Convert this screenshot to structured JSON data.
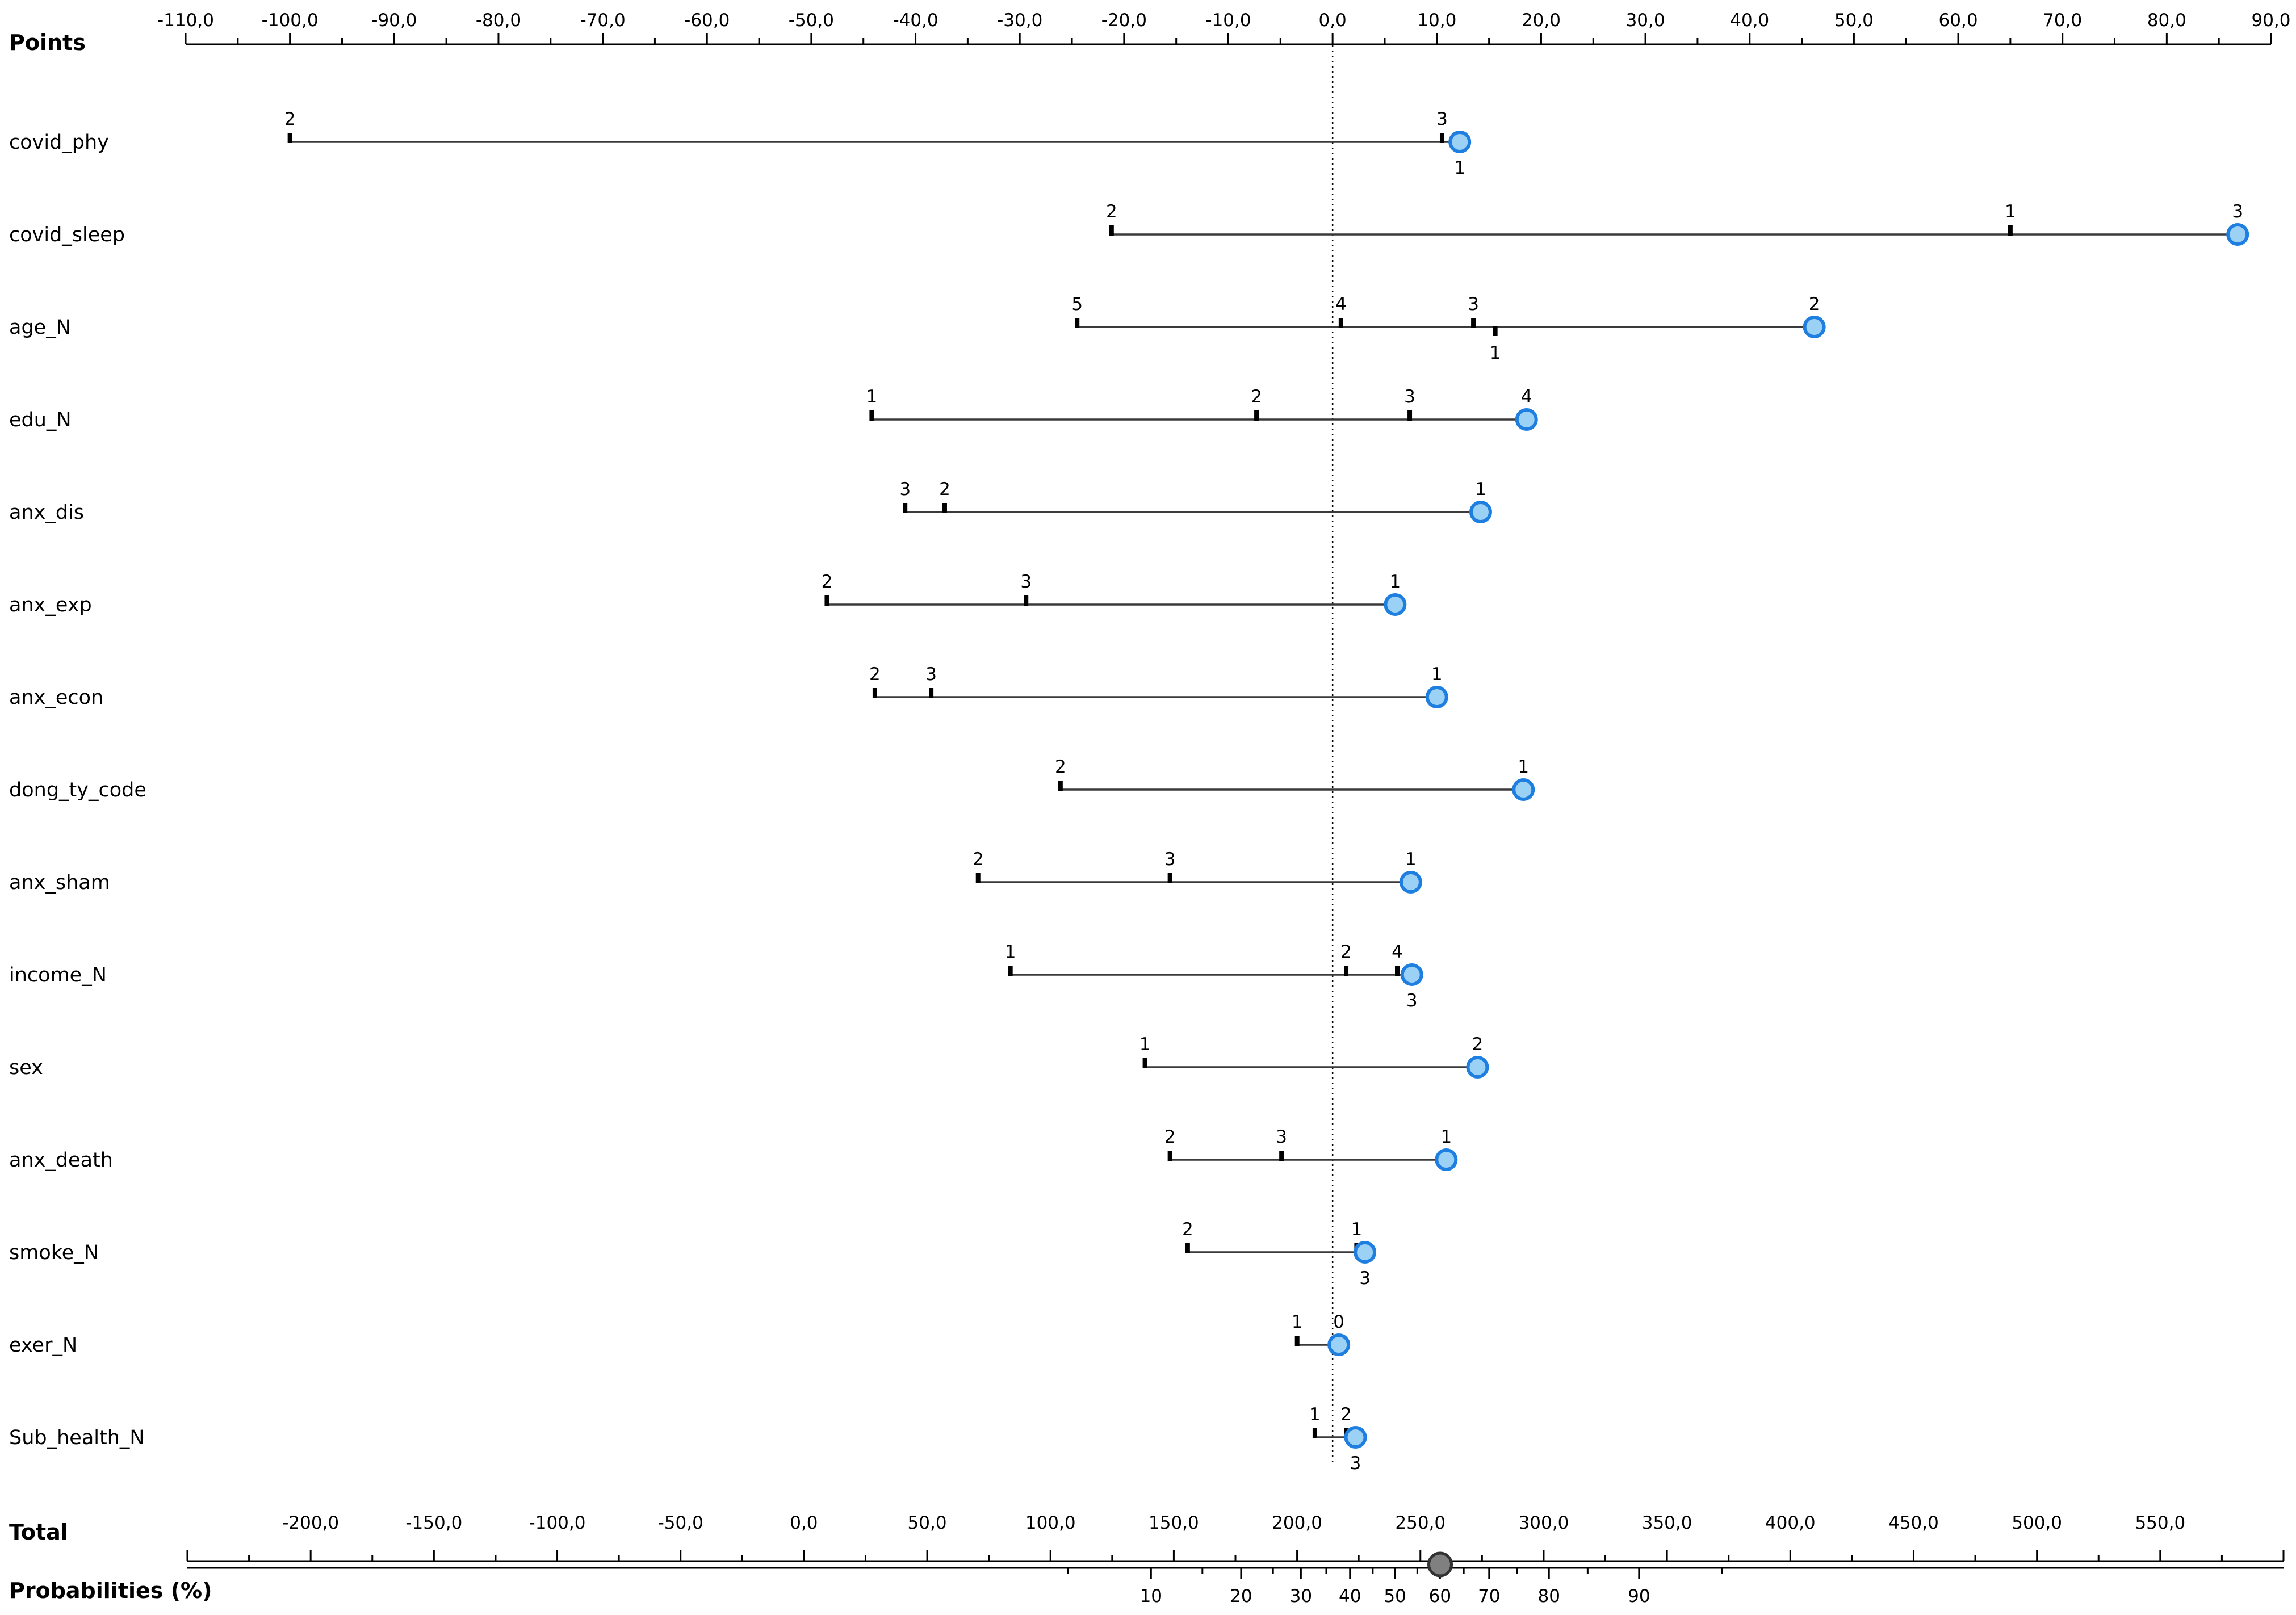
{
  "chart_data": {
    "type": "nomogram",
    "title": "",
    "points_label": "Points",
    "total_label": "Total",
    "probabilities_label": "Probabilities (%)",
    "points_axis": {
      "range": [
        -110,
        90
      ],
      "ticks": [
        "-110,0",
        "-100,0",
        "-90,0",
        "-80,0",
        "-70,0",
        "-60,0",
        "-50,0",
        "-40,0",
        "-30,0",
        "-20,0",
        "-10,0",
        "0,0",
        "10,0",
        "20,0",
        "30,0",
        "40,0",
        "50,0",
        "60,0",
        "70,0",
        "80,0",
        "90,0"
      ],
      "tick_values": [
        -110,
        -100,
        -90,
        -80,
        -70,
        -60,
        -50,
        -40,
        -30,
        -20,
        -10,
        0,
        10,
        20,
        30,
        40,
        50,
        60,
        70,
        80,
        90
      ]
    },
    "reference_line_points": 0,
    "variables": [
      {
        "name": "covid_phy",
        "levels": [
          {
            "label": "2",
            "points": -100,
            "above": true
          },
          {
            "label": "3",
            "points": 10.5,
            "above": true
          },
          {
            "label": "1",
            "points": 12.2,
            "above": false
          }
        ],
        "selected": "1",
        "selected_points": 12.2
      },
      {
        "name": "covid_sleep",
        "levels": [
          {
            "label": "2",
            "points": -21.2,
            "above": true
          },
          {
            "label": "1",
            "points": 65,
            "above": true
          },
          {
            "label": "3",
            "points": 86.8,
            "above": true
          }
        ],
        "selected": "3",
        "selected_points": 86.8
      },
      {
        "name": "age_N",
        "levels": [
          {
            "label": "5",
            "points": -24.5,
            "above": true
          },
          {
            "label": "4",
            "points": 0.8,
            "above": true
          },
          {
            "label": "3",
            "points": 13.5,
            "above": true
          },
          {
            "label": "1",
            "points": 15.6,
            "above": false
          },
          {
            "label": "2",
            "points": 46.2,
            "above": true
          }
        ],
        "selected": "2",
        "selected_points": 46.2
      },
      {
        "name": "edu_N",
        "levels": [
          {
            "label": "1",
            "points": -44.2,
            "above": true
          },
          {
            "label": "2",
            "points": -7.3,
            "above": true
          },
          {
            "label": "3",
            "points": 7.4,
            "above": true
          },
          {
            "label": "4",
            "points": 18.6,
            "above": true
          }
        ],
        "selected": "4",
        "selected_points": 18.6
      },
      {
        "name": "anx_dis",
        "levels": [
          {
            "label": "3",
            "points": -41,
            "above": true
          },
          {
            "label": "2",
            "points": -37.2,
            "above": true
          },
          {
            "label": "1",
            "points": 14.2,
            "above": true
          }
        ],
        "selected": "1",
        "selected_points": 14.2
      },
      {
        "name": "anx_exp",
        "levels": [
          {
            "label": "2",
            "points": -48.5,
            "above": true
          },
          {
            "label": "3",
            "points": -29.4,
            "above": true
          },
          {
            "label": "1",
            "points": 6,
            "above": true
          }
        ],
        "selected": "1",
        "selected_points": 6
      },
      {
        "name": "anx_econ",
        "levels": [
          {
            "label": "2",
            "points": -43.9,
            "above": true
          },
          {
            "label": "3",
            "points": -38.5,
            "above": true
          },
          {
            "label": "1",
            "points": 10,
            "above": true
          }
        ],
        "selected": "1",
        "selected_points": 10
      },
      {
        "name": "dong_ty_code",
        "levels": [
          {
            "label": "2",
            "points": -26.1,
            "above": true
          },
          {
            "label": "1",
            "points": 18.3,
            "above": true
          }
        ],
        "selected": "1",
        "selected_points": 18.3
      },
      {
        "name": "anx_sham",
        "levels": [
          {
            "label": "2",
            "points": -34,
            "above": true
          },
          {
            "label": "3",
            "points": -15.6,
            "above": true
          },
          {
            "label": "1",
            "points": 7.5,
            "above": true
          }
        ],
        "selected": "1",
        "selected_points": 7.5
      },
      {
        "name": "income_N",
        "levels": [
          {
            "label": "1",
            "points": -30.9,
            "above": true
          },
          {
            "label": "2",
            "points": 1.3,
            "above": true
          },
          {
            "label": "4",
            "points": 6.2,
            "above": true
          },
          {
            "label": "3",
            "points": 7.6,
            "above": false
          }
        ],
        "selected": "3",
        "selected_points": 7.6
      },
      {
        "name": "sex",
        "levels": [
          {
            "label": "1",
            "points": -18,
            "above": true
          },
          {
            "label": "2",
            "points": 13.9,
            "above": true
          }
        ],
        "selected": "2",
        "selected_points": 13.9
      },
      {
        "name": "anx_death",
        "levels": [
          {
            "label": "2",
            "points": -15.6,
            "above": true
          },
          {
            "label": "3",
            "points": -4.9,
            "above": true
          },
          {
            "label": "1",
            "points": 10.9,
            "above": true
          }
        ],
        "selected": "1",
        "selected_points": 10.9
      },
      {
        "name": "smoke_N",
        "levels": [
          {
            "label": "2",
            "points": -13.9,
            "above": true
          },
          {
            "label": "1",
            "points": 2.3,
            "above": true
          },
          {
            "label": "3",
            "points": 3.1,
            "above": false
          }
        ],
        "selected": "3",
        "selected_points": 3.1
      },
      {
        "name": "exer_N",
        "levels": [
          {
            "label": "1",
            "points": -3.4,
            "above": true
          },
          {
            "label": "0",
            "points": 0.6,
            "above": true
          }
        ],
        "selected": "0",
        "selected_points": 0.6
      },
      {
        "name": "Sub_health_N",
        "levels": [
          {
            "label": "1",
            "points": -1.7,
            "above": true
          },
          {
            "label": "2",
            "points": 1.3,
            "above": true
          },
          {
            "label": "3",
            "points": 2.2,
            "above": false
          }
        ],
        "selected": "3",
        "selected_points": 2.2
      }
    ],
    "total_axis": {
      "range": [
        -250,
        600
      ],
      "ticks": [
        "-200,0",
        "-150,0",
        "-100,0",
        "-50,0",
        "0,0",
        "50,0",
        "100,0",
        "150,0",
        "200,0",
        "250,0",
        "300,0",
        "350,0",
        "400,0",
        "450,0",
        "500,0",
        "550,0"
      ],
      "tick_values": [
        -200,
        -150,
        -100,
        -50,
        0,
        50,
        100,
        150,
        200,
        250,
        300,
        350,
        400,
        450,
        500,
        550
      ]
    },
    "probability_axis": {
      "ticks": [
        "10",
        "20",
        "30",
        "40",
        "50",
        "60",
        "70",
        "80",
        "90"
      ],
      "tick_values": [
        10,
        20,
        30,
        40,
        50,
        60,
        70,
        80,
        90
      ]
    },
    "total_selected": 258,
    "colors": {
      "marker_fill": "#9cd1f6",
      "marker_stroke": "#1e7fe0",
      "total_marker_fill": "#808080",
      "total_marker_stroke": "#333333"
    }
  }
}
